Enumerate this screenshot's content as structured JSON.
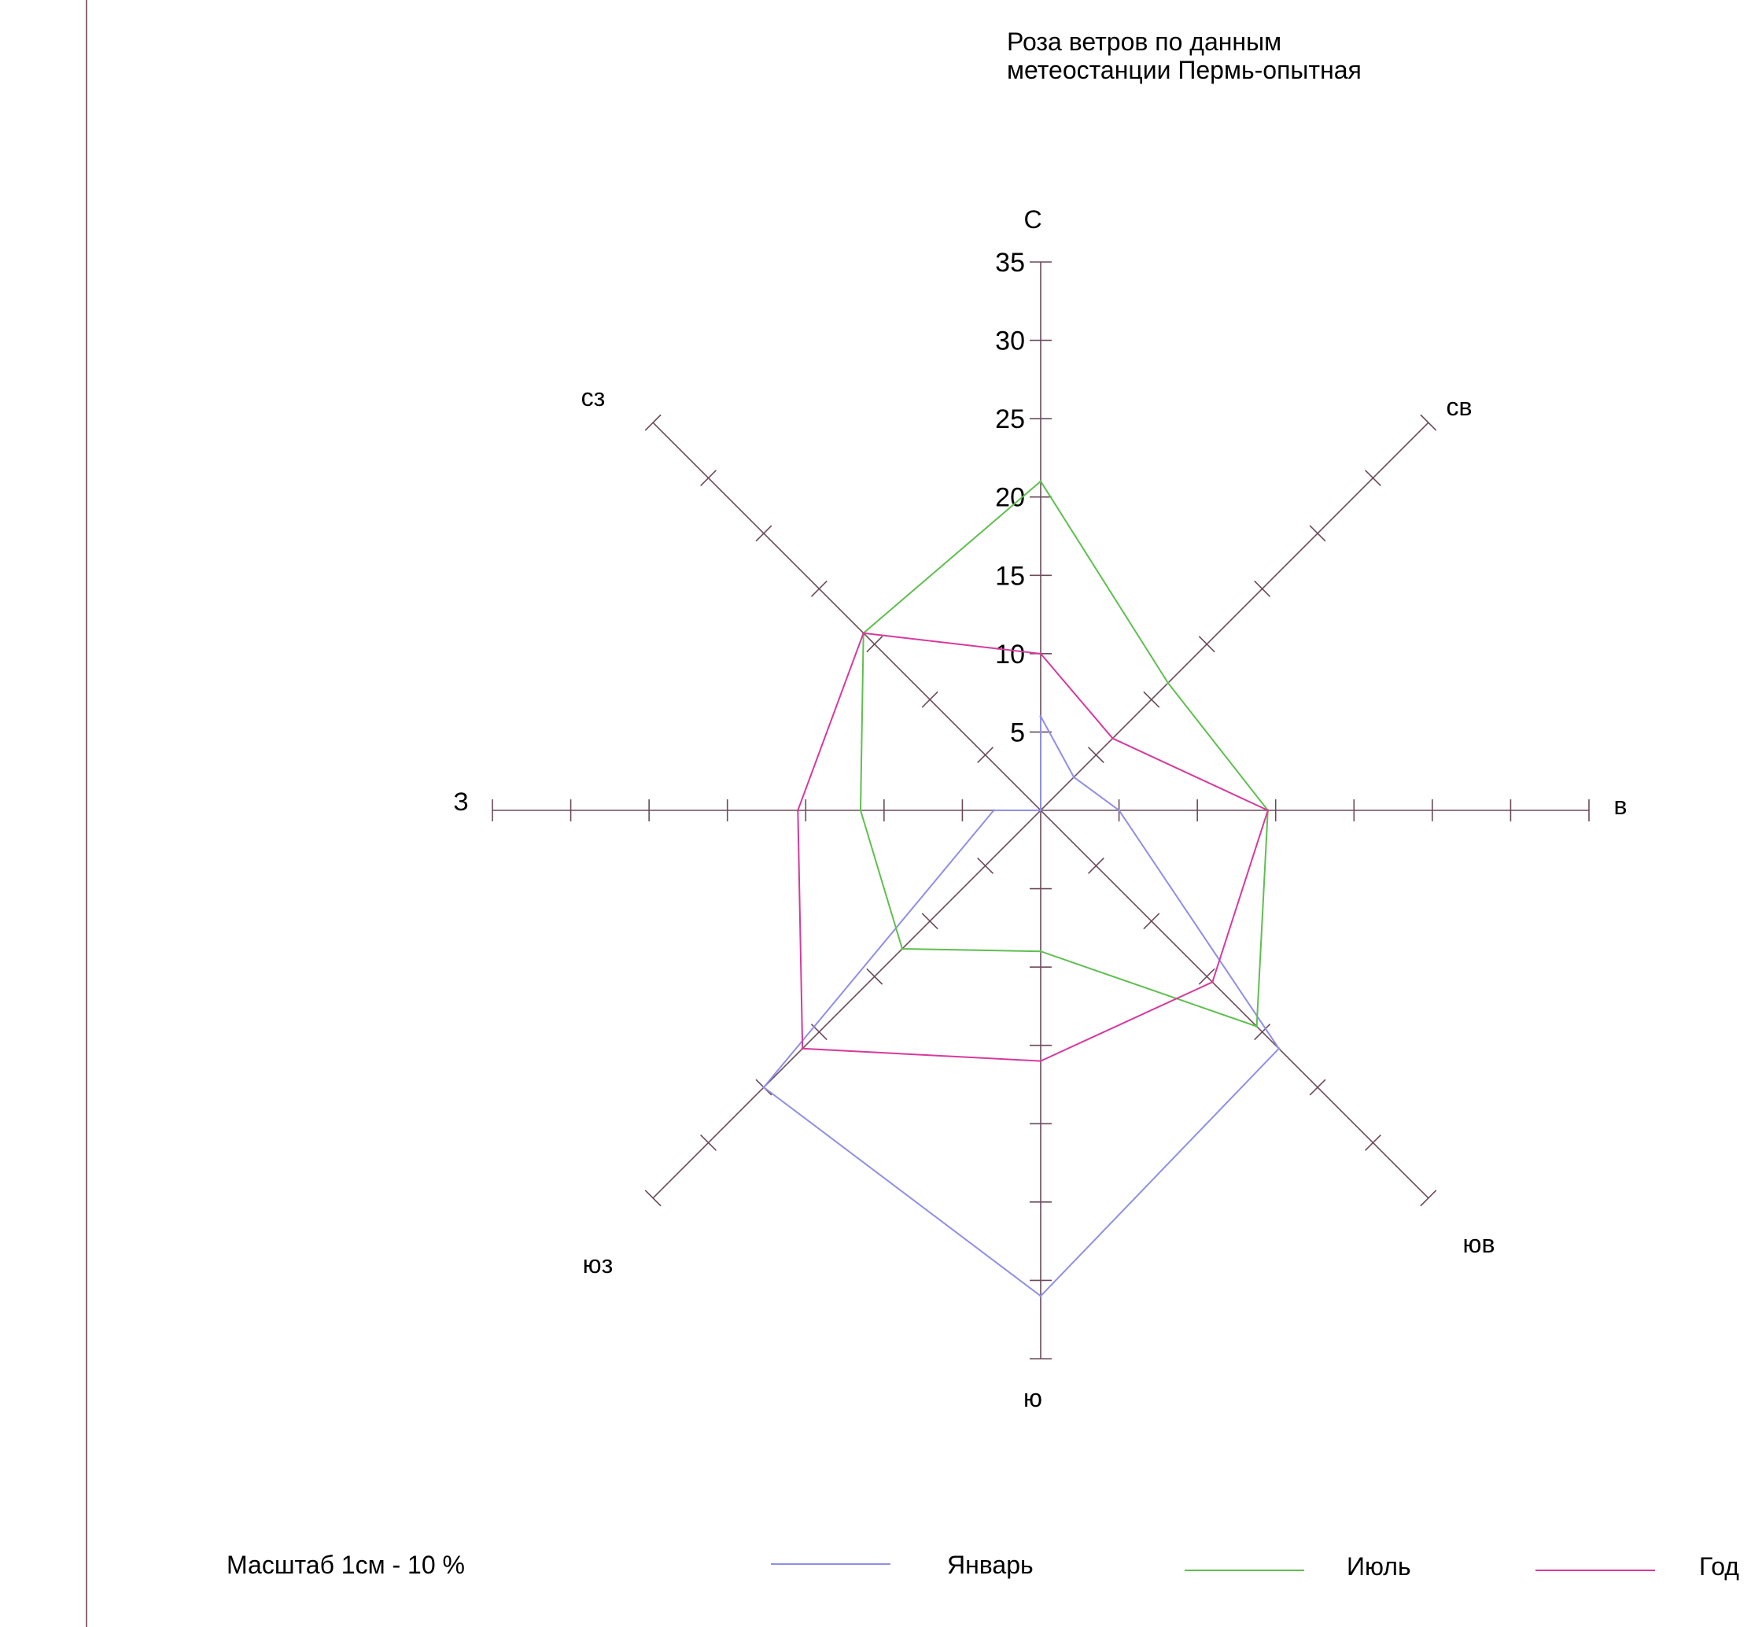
{
  "chart_data": {
    "type": "radar",
    "title_lines": [
      "Роза ветров по данным",
      "метеостанции Пермь-опытная"
    ],
    "directions": [
      "С",
      "св",
      "в",
      "юв",
      "ю",
      "юз",
      "З",
      "сз"
    ],
    "radial_ticks": [
      "5",
      "10",
      "15",
      "20",
      "25",
      "30",
      "35"
    ],
    "radial_range": [
      0,
      35
    ],
    "series": [
      {
        "name": "Январь",
        "color": "#8f8fe6",
        "values": [
          6,
          3,
          5,
          21.5,
          31,
          25,
          3,
          0
        ]
      },
      {
        "name": "Июль",
        "color": "#5fbf4f",
        "values": [
          21,
          11.5,
          14.5,
          19.5,
          9,
          12.5,
          11.5,
          16
        ]
      },
      {
        "name": "Год",
        "color": "#d63a9c",
        "values": [
          10,
          6.5,
          14.5,
          15.5,
          16,
          21.5,
          15.5,
          16
        ]
      }
    ],
    "scale_note": "Масштаб 1см - 10 %"
  },
  "frame": {
    "left_rule_color": "#8a6a7a",
    "axis_color": "#6b4a5a"
  }
}
